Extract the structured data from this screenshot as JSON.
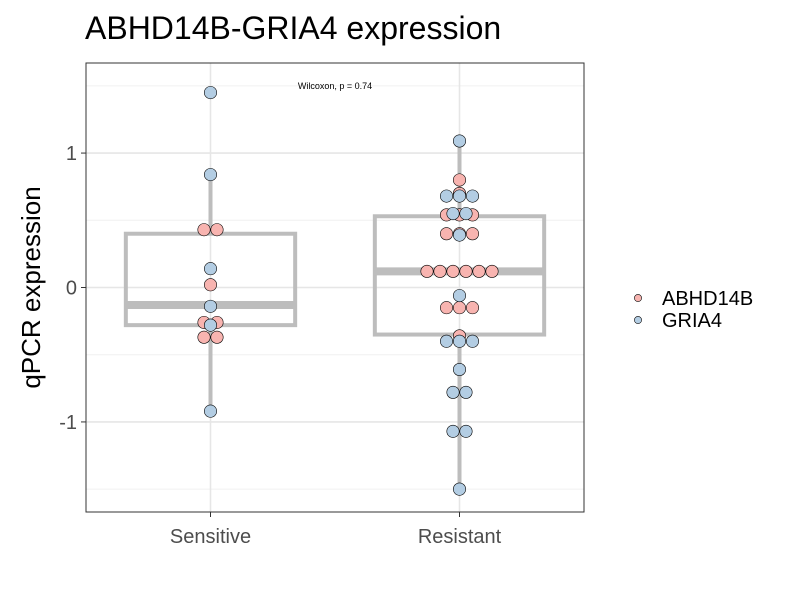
{
  "chart_data": {
    "type": "boxplot-dotplot",
    "title": "ABHD14B-GRIA4 expression",
    "ylabel": "qPCR expression",
    "xlabel": "",
    "annotation": "Wilcoxon, p = 0.74",
    "categories": [
      "Sensitive",
      "Resistant"
    ],
    "ylim": [
      -1.67,
      1.67
    ],
    "yticks": [
      -1,
      0,
      1
    ],
    "grid": true,
    "legend_position": "right",
    "legend": [
      {
        "name": "ABHD14B",
        "color": "#F8B4B0"
      },
      {
        "name": "GRIA4",
        "color": "#B3CDE3"
      }
    ],
    "boxes": [
      {
        "category": "Sensitive",
        "whisker_low": -0.92,
        "q1": -0.28,
        "median": -0.13,
        "q3": 0.4,
        "whisker_high": 0.84
      },
      {
        "category": "Resistant",
        "whisker_low": -1.5,
        "q1": -0.35,
        "median": 0.12,
        "q3": 0.53,
        "whisker_high": 1.09
      }
    ],
    "series": [
      {
        "name": "ABHD14B",
        "color": "#F8B4B0",
        "points": [
          {
            "category": "Sensitive",
            "y": 0.43
          },
          {
            "category": "Sensitive",
            "y": 0.43
          },
          {
            "category": "Sensitive",
            "y": 0.02
          },
          {
            "category": "Sensitive",
            "y": -0.26
          },
          {
            "category": "Sensitive",
            "y": -0.26
          },
          {
            "category": "Sensitive",
            "y": -0.37
          },
          {
            "category": "Sensitive",
            "y": -0.37
          },
          {
            "category": "Resistant",
            "y": 0.8
          },
          {
            "category": "Resistant",
            "y": 0.7
          },
          {
            "category": "Resistant",
            "y": 0.54
          },
          {
            "category": "Resistant",
            "y": 0.54
          },
          {
            "category": "Resistant",
            "y": 0.54
          },
          {
            "category": "Resistant",
            "y": 0.4
          },
          {
            "category": "Resistant",
            "y": 0.4
          },
          {
            "category": "Resistant",
            "y": 0.4
          },
          {
            "category": "Resistant",
            "y": 0.12
          },
          {
            "category": "Resistant",
            "y": 0.12
          },
          {
            "category": "Resistant",
            "y": 0.12
          },
          {
            "category": "Resistant",
            "y": 0.12
          },
          {
            "category": "Resistant",
            "y": 0.12
          },
          {
            "category": "Resistant",
            "y": 0.12
          },
          {
            "category": "Resistant",
            "y": -0.15
          },
          {
            "category": "Resistant",
            "y": -0.15
          },
          {
            "category": "Resistant",
            "y": -0.15
          },
          {
            "category": "Resistant",
            "y": -0.36
          }
        ]
      },
      {
        "name": "GRIA4",
        "color": "#B3CDE3",
        "points": [
          {
            "category": "Sensitive",
            "y": 1.45
          },
          {
            "category": "Sensitive",
            "y": 0.84
          },
          {
            "category": "Sensitive",
            "y": 0.14
          },
          {
            "category": "Sensitive",
            "y": -0.14
          },
          {
            "category": "Sensitive",
            "y": -0.28
          },
          {
            "category": "Sensitive",
            "y": -0.92
          },
          {
            "category": "Resistant",
            "y": 1.09
          },
          {
            "category": "Resistant",
            "y": 0.68
          },
          {
            "category": "Resistant",
            "y": 0.68
          },
          {
            "category": "Resistant",
            "y": 0.68
          },
          {
            "category": "Resistant",
            "y": 0.55
          },
          {
            "category": "Resistant",
            "y": 0.55
          },
          {
            "category": "Resistant",
            "y": 0.39
          },
          {
            "category": "Resistant",
            "y": -0.06
          },
          {
            "category": "Resistant",
            "y": -0.4
          },
          {
            "category": "Resistant",
            "y": -0.4
          },
          {
            "category": "Resistant",
            "y": -0.4
          },
          {
            "category": "Resistant",
            "y": -0.61
          },
          {
            "category": "Resistant",
            "y": -0.78
          },
          {
            "category": "Resistant",
            "y": -0.78
          },
          {
            "category": "Resistant",
            "y": -1.07
          },
          {
            "category": "Resistant",
            "y": -1.07
          },
          {
            "category": "Resistant",
            "y": -1.5
          }
        ]
      }
    ]
  }
}
